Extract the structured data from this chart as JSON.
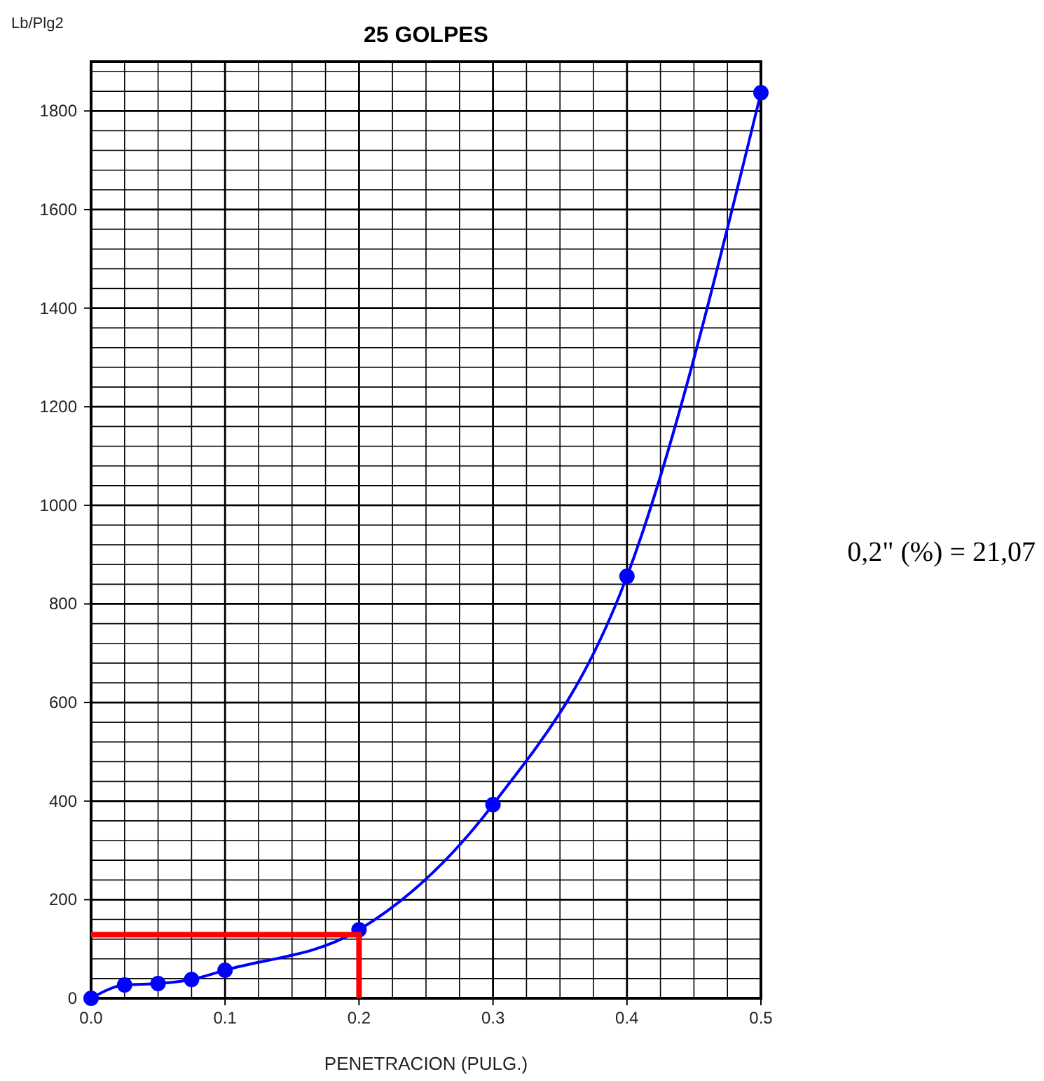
{
  "chart_data": {
    "type": "line",
    "title": "25 GOLPES",
    "xlabel": "PENETRACION (PULG.)",
    "ylabel": "Lb/Plg2",
    "annotations": [
      "0,2\" (%) = 21,07"
    ],
    "xlim": [
      0,
      0.5
    ],
    "ylim": [
      0,
      1900
    ],
    "xticks": [
      {
        "value": 0,
        "label": "0.0"
      },
      {
        "value": 0.025,
        "label": null
      },
      {
        "value": 0.05,
        "label": null
      },
      {
        "value": 0.075,
        "label": null
      },
      {
        "value": 0.1,
        "label": "0.1"
      },
      {
        "value": 0.125,
        "label": null
      },
      {
        "value": 0.15,
        "label": null
      },
      {
        "value": 0.175,
        "label": null
      },
      {
        "value": 0.2,
        "label": "0.2"
      },
      {
        "value": 0.225,
        "label": null
      },
      {
        "value": 0.25,
        "label": null
      },
      {
        "value": 0.275,
        "label": null
      },
      {
        "value": 0.3,
        "label": "0.3"
      },
      {
        "value": 0.325,
        "label": null
      },
      {
        "value": 0.35,
        "label": null
      },
      {
        "value": 0.375,
        "label": null
      },
      {
        "value": 0.4,
        "label": "0.4"
      },
      {
        "value": 0.425,
        "label": null
      },
      {
        "value": 0.45,
        "label": null
      },
      {
        "value": 0.475,
        "label": null
      },
      {
        "value": 0.5,
        "label": "0.5"
      }
    ],
    "yticks": [
      0,
      {
        "value": 40,
        "label": null
      },
      {
        "value": 80,
        "label": null
      },
      {
        "value": 120,
        "label": null
      },
      {
        "value": 160,
        "label": null
      },
      200,
      {
        "value": 240,
        "label": null
      },
      {
        "value": 280,
        "label": null
      },
      {
        "value": 320,
        "label": null
      },
      {
        "value": 360,
        "label": null
      },
      400,
      {
        "value": 440,
        "label": null
      },
      {
        "value": 480,
        "label": null
      },
      {
        "value": 520,
        "label": null
      },
      {
        "value": 560,
        "label": null
      },
      600,
      {
        "value": 640,
        "label": null
      },
      {
        "value": 680,
        "label": null
      },
      {
        "value": 720,
        "label": null
      },
      {
        "value": 760,
        "label": null
      },
      800,
      {
        "value": 840,
        "label": null
      },
      {
        "value": 880,
        "label": null
      },
      {
        "value": 920,
        "label": null
      },
      {
        "value": 960,
        "label": null
      },
      1000,
      {
        "value": 1040,
        "label": null
      },
      {
        "value": 1080,
        "label": null
      },
      {
        "value": 1120,
        "label": null
      },
      {
        "value": 1160,
        "label": null
      },
      1200,
      {
        "value": 1240,
        "label": null
      },
      {
        "value": 1280,
        "label": null
      },
      {
        "value": 1320,
        "label": null
      },
      {
        "value": 1360,
        "label": null
      },
      1400,
      {
        "value": 1440,
        "label": null
      },
      {
        "value": 1480,
        "label": null
      },
      {
        "value": 1520,
        "label": null
      },
      {
        "value": 1560,
        "label": null
      },
      1600,
      {
        "value": 1640,
        "label": null
      },
      {
        "value": 1680,
        "label": null
      },
      {
        "value": 1720,
        "label": null
      },
      {
        "value": 1760,
        "label": null
      },
      1800,
      {
        "value": 1840,
        "label": null
      },
      {
        "value": 1880,
        "label": null
      }
    ],
    "grid": true,
    "line_style": "solid",
    "series": [
      {
        "color": "#0000ff",
        "marker": "circle",
        "x": [
          0,
          0.025,
          0.05,
          0.075,
          0.1,
          0.2,
          0.3,
          0.4,
          0.5
        ],
        "values": [
          0,
          27,
          30,
          38,
          57,
          139,
          393,
          856,
          1837
        ]
      },
      {
        "color": "#ff0000",
        "marker": "none",
        "x": [
          0,
          0.2,
          0.2
        ],
        "values": [
          129,
          129,
          0
        ]
      }
    ]
  }
}
